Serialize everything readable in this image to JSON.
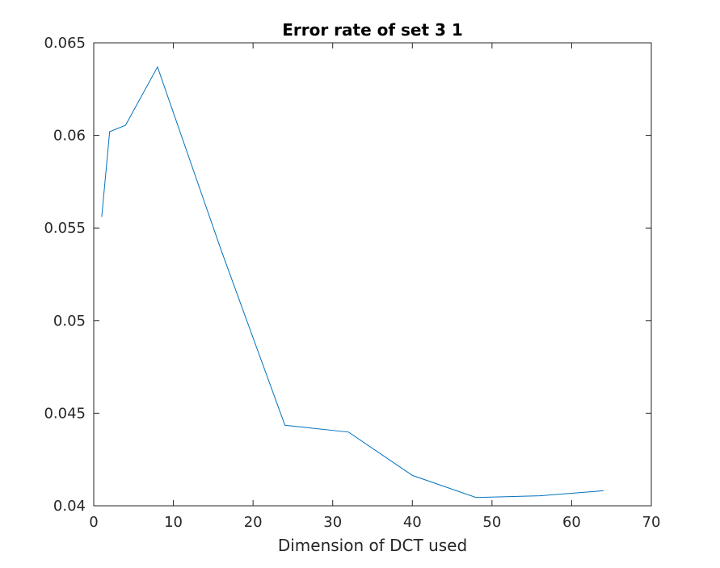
{
  "chart_data": {
    "type": "line",
    "title": "Error rate of set 3 1",
    "xlabel": "Dimension of DCT used",
    "ylabel": "",
    "xlim": [
      0,
      70
    ],
    "ylim": [
      0.04,
      0.065
    ],
    "xticks": [
      0,
      10,
      20,
      30,
      40,
      50,
      60,
      70
    ],
    "xtick_labels": [
      "0",
      "10",
      "20",
      "30",
      "40",
      "50",
      "60",
      "70"
    ],
    "yticks": [
      0.04,
      0.045,
      0.05,
      0.055,
      0.06,
      0.065
    ],
    "ytick_labels": [
      "0.04",
      "0.045",
      "0.05",
      "0.055",
      "0.06",
      "0.065"
    ],
    "grid": false,
    "legend": "none",
    "series": [
      {
        "color": "#0072BD",
        "x": [
          1,
          2,
          4,
          8,
          16,
          24,
          32,
          40,
          48,
          56,
          64
        ],
        "y": [
          0.0556,
          0.0602,
          0.06055,
          0.0637,
          0.0538,
          0.04435,
          0.04398,
          0.04164,
          0.04045,
          0.04054,
          0.04081
        ]
      }
    ]
  }
}
